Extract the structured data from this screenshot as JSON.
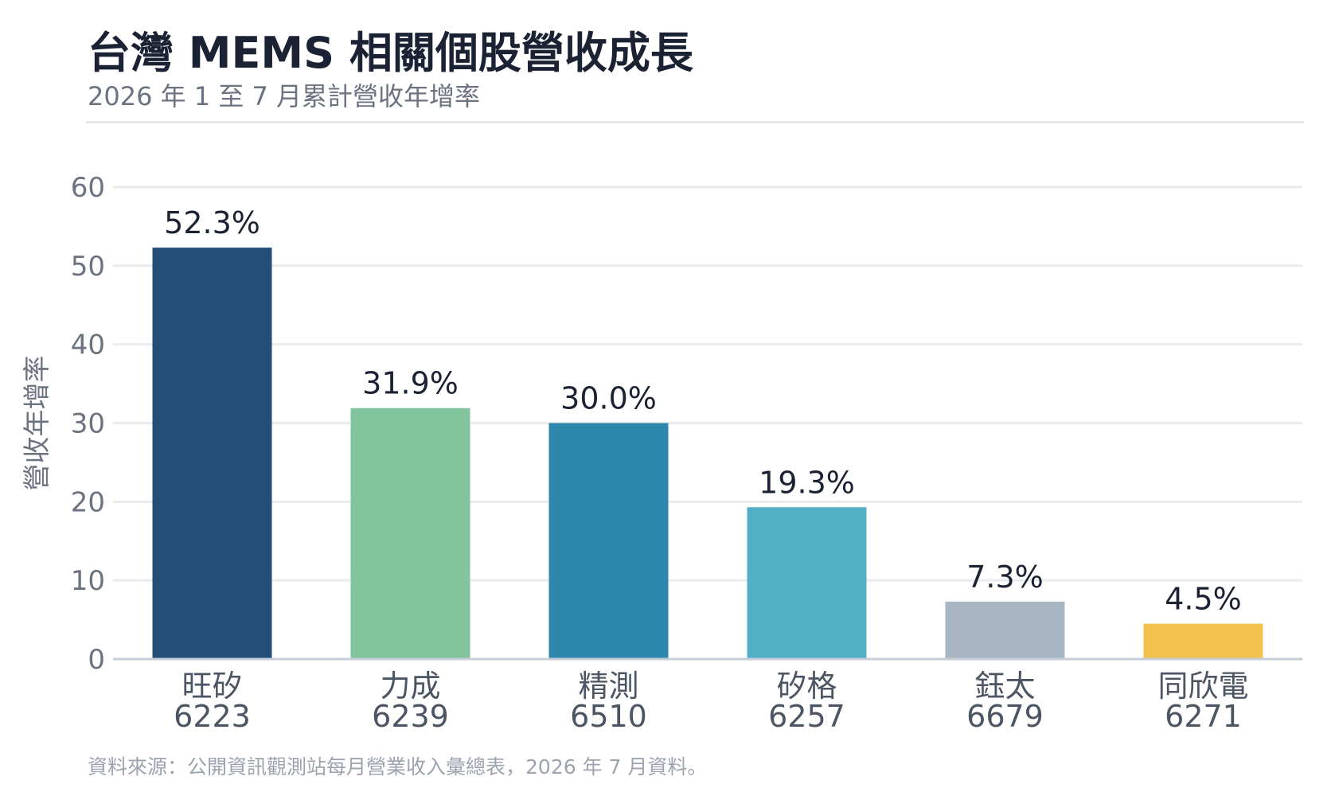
{
  "header": {
    "title": "台灣 MEMS 相關個股營收成長",
    "subtitle": "2026 年 1 至 7 月累計營收年增率"
  },
  "footer": {
    "source": "資料來源：公開資訊觀測站每月營業收入彙總表，2026 年 7 月資料。"
  },
  "chart_data": {
    "type": "bar",
    "categories": [
      "旺矽",
      "力成",
      "精測",
      "矽格",
      "鈺太",
      "同欣電"
    ],
    "codes": [
      "6223",
      "6239",
      "6510",
      "6257",
      "6679",
      "6271"
    ],
    "values": [
      52.3,
      31.9,
      30.0,
      19.3,
      7.3,
      4.5
    ],
    "value_labels": [
      "52.3%",
      "31.9%",
      "30.0%",
      "19.3%",
      "7.3%",
      "4.5%"
    ],
    "colors": [
      "#224e77",
      "#82c49c",
      "#2e87ad",
      "#51b0c6",
      "#a8b6c4",
      "#f1c14d"
    ],
    "ylabel": "營收年增率",
    "ylim": [
      0,
      60
    ],
    "yticks": [
      0,
      10,
      20,
      30,
      40,
      50,
      60
    ],
    "grid": true
  }
}
